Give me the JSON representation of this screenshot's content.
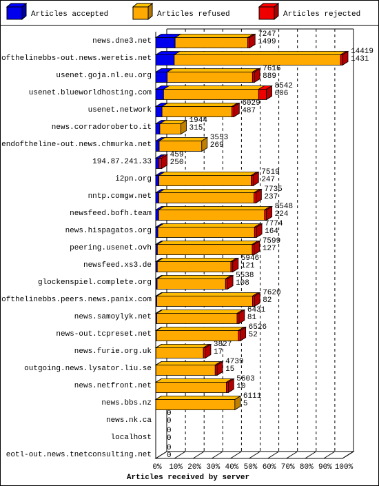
{
  "chart_data": {
    "type": "bar",
    "orientation": "horizontal",
    "stacked": true,
    "xlabel": "Articles received by server",
    "legend": "top",
    "grid": true,
    "xlim": [
      0,
      14419
    ],
    "xticks": [
      {
        "value": 0,
        "label": "0%"
      },
      {
        "value": 1441.9,
        "label": "10%"
      },
      {
        "value": 2883.8,
        "label": "20%"
      },
      {
        "value": 4325.7,
        "label": "30%"
      },
      {
        "value": 5767.6,
        "label": "40%"
      },
      {
        "value": 7209.5,
        "label": "50%"
      },
      {
        "value": 8651.4,
        "label": "60%"
      },
      {
        "value": 10093.3,
        "label": "70%"
      },
      {
        "value": 11535.2,
        "label": "80%"
      },
      {
        "value": 12977.1,
        "label": "90%"
      },
      {
        "value": 14419,
        "label": "100%"
      }
    ],
    "categories": [
      "news.dne3.net",
      "endofthelinebbs-out.news.weretis.net",
      "usenet.goja.nl.eu.org",
      "usenet.blueworldhosting.com",
      "usenet.network",
      "news.corradoroberto.it",
      "endoftheline-out.news.chmurka.net",
      "194.87.241.33",
      "i2pn.org",
      "nntp.comgw.net",
      "newsfeed.bofh.team",
      "news.hispagatos.org",
      "peering.usenet.ovh",
      "newsfeed.xs3.de",
      "glockenspiel.complete.org",
      "endofthelinebbs.peers.news.panix.com",
      "news.samoylyk.net",
      "news-out.tcpreset.net",
      "news.furie.org.uk",
      "outgoing.news.lysator.liu.se",
      "news.netfront.net",
      "news.bbs.nz",
      "news.nk.ca",
      "localhost",
      "eotl-out.news.tnetconsulting.net"
    ],
    "totals": [
      7247,
      14419,
      7616,
      8542,
      6029,
      1944,
      3553,
      459,
      7519,
      7735,
      8548,
      7774,
      7599,
      5946,
      5538,
      7620,
      6431,
      6526,
      3827,
      4739,
      5603,
      6111,
      0,
      0,
      0
    ],
    "series": [
      {
        "name": "Articles accepted",
        "color": "#0000ee",
        "values": [
          1499,
          1431,
          889,
          606,
          487,
          315,
          269,
          250,
          247,
          237,
          224,
          164,
          127,
          121,
          108,
          82,
          81,
          52,
          17,
          15,
          10,
          5,
          0,
          0,
          0
        ]
      },
      {
        "name": "Articles refused",
        "color": "#ffaa00",
        "values": [
          5598,
          12838,
          6577,
          7336,
          5392,
          1629,
          3284,
          0,
          7122,
          7348,
          8174,
          7460,
          7322,
          5675,
          5280,
          7388,
          6200,
          6324,
          3660,
          4574,
          5443,
          6106,
          0,
          0,
          0
        ]
      },
      {
        "name": "Articles rejected",
        "color": "#ee0000",
        "values": [
          150,
          150,
          150,
          600,
          150,
          0,
          0,
          209,
          150,
          150,
          150,
          150,
          150,
          150,
          150,
          150,
          150,
          150,
          150,
          150,
          150,
          0,
          0,
          0,
          0
        ]
      }
    ]
  }
}
